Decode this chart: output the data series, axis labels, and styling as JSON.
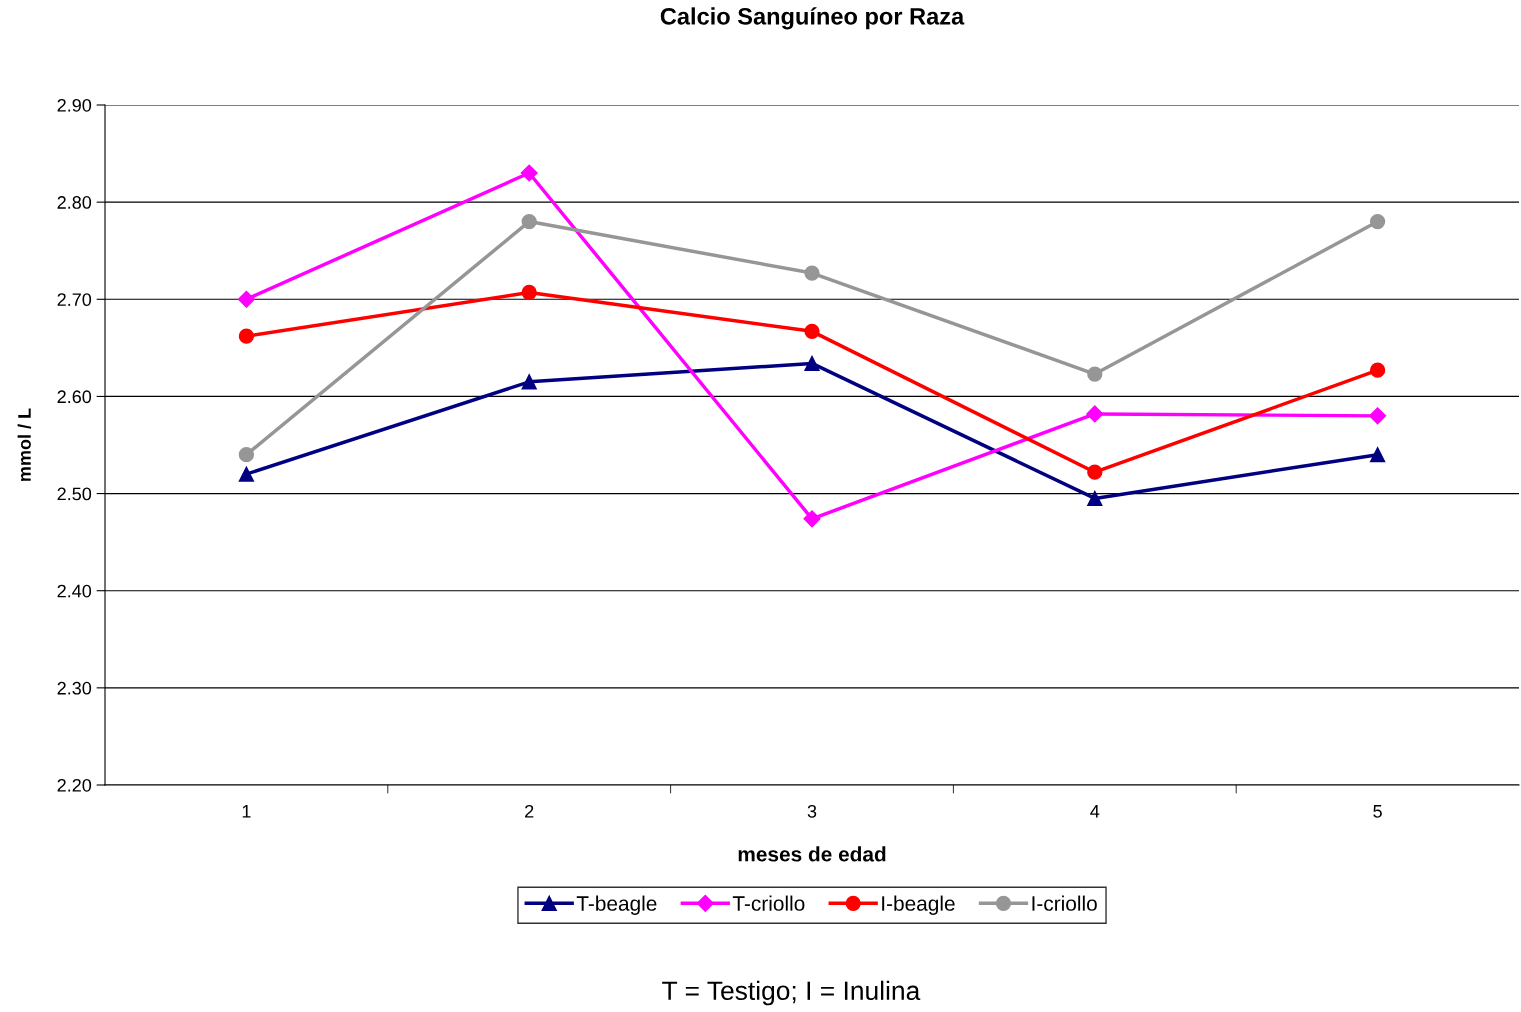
{
  "chart_data": {
    "type": "line",
    "title": "Calcio Sanguíneo por Raza",
    "xlabel": "meses de edad",
    "ylabel": "mmol / L",
    "categories": [
      "1",
      "2",
      "3",
      "4",
      "5"
    ],
    "series": [
      {
        "name": "T-beagle",
        "color": "#000080",
        "marker": "triangle",
        "values": [
          2.52,
          2.615,
          2.634,
          2.495,
          2.54
        ]
      },
      {
        "name": "T-criollo",
        "color": "#ff00ff",
        "marker": "diamond",
        "values": [
          2.7,
          2.83,
          2.474,
          2.582,
          2.58
        ]
      },
      {
        "name": "I-beagle",
        "color": "#ff0000",
        "marker": "circle",
        "values": [
          2.662,
          2.707,
          2.667,
          2.522,
          2.627
        ]
      },
      {
        "name": "I-criollo",
        "color": "#969696",
        "marker": "circle",
        "values": [
          2.54,
          2.78,
          2.727,
          2.623,
          2.78
        ]
      }
    ],
    "ylim": [
      2.2,
      2.9
    ],
    "yticks": [
      {
        "value": 2.2,
        "label": "2.20"
      },
      {
        "value": 2.3,
        "label": "2.30"
      },
      {
        "value": 2.4,
        "label": "2.40"
      },
      {
        "value": 2.5,
        "label": "2.50"
      },
      {
        "value": 2.6,
        "label": "2.60"
      },
      {
        "value": 2.7,
        "label": "2.70"
      },
      {
        "value": 2.8,
        "label": "2.80"
      },
      {
        "value": 2.9,
        "label": "2.90"
      }
    ],
    "grid": "y",
    "legend": "bottom",
    "line_style": "solid",
    "annotations": [
      "T = Testigo; I = Inulina"
    ]
  }
}
